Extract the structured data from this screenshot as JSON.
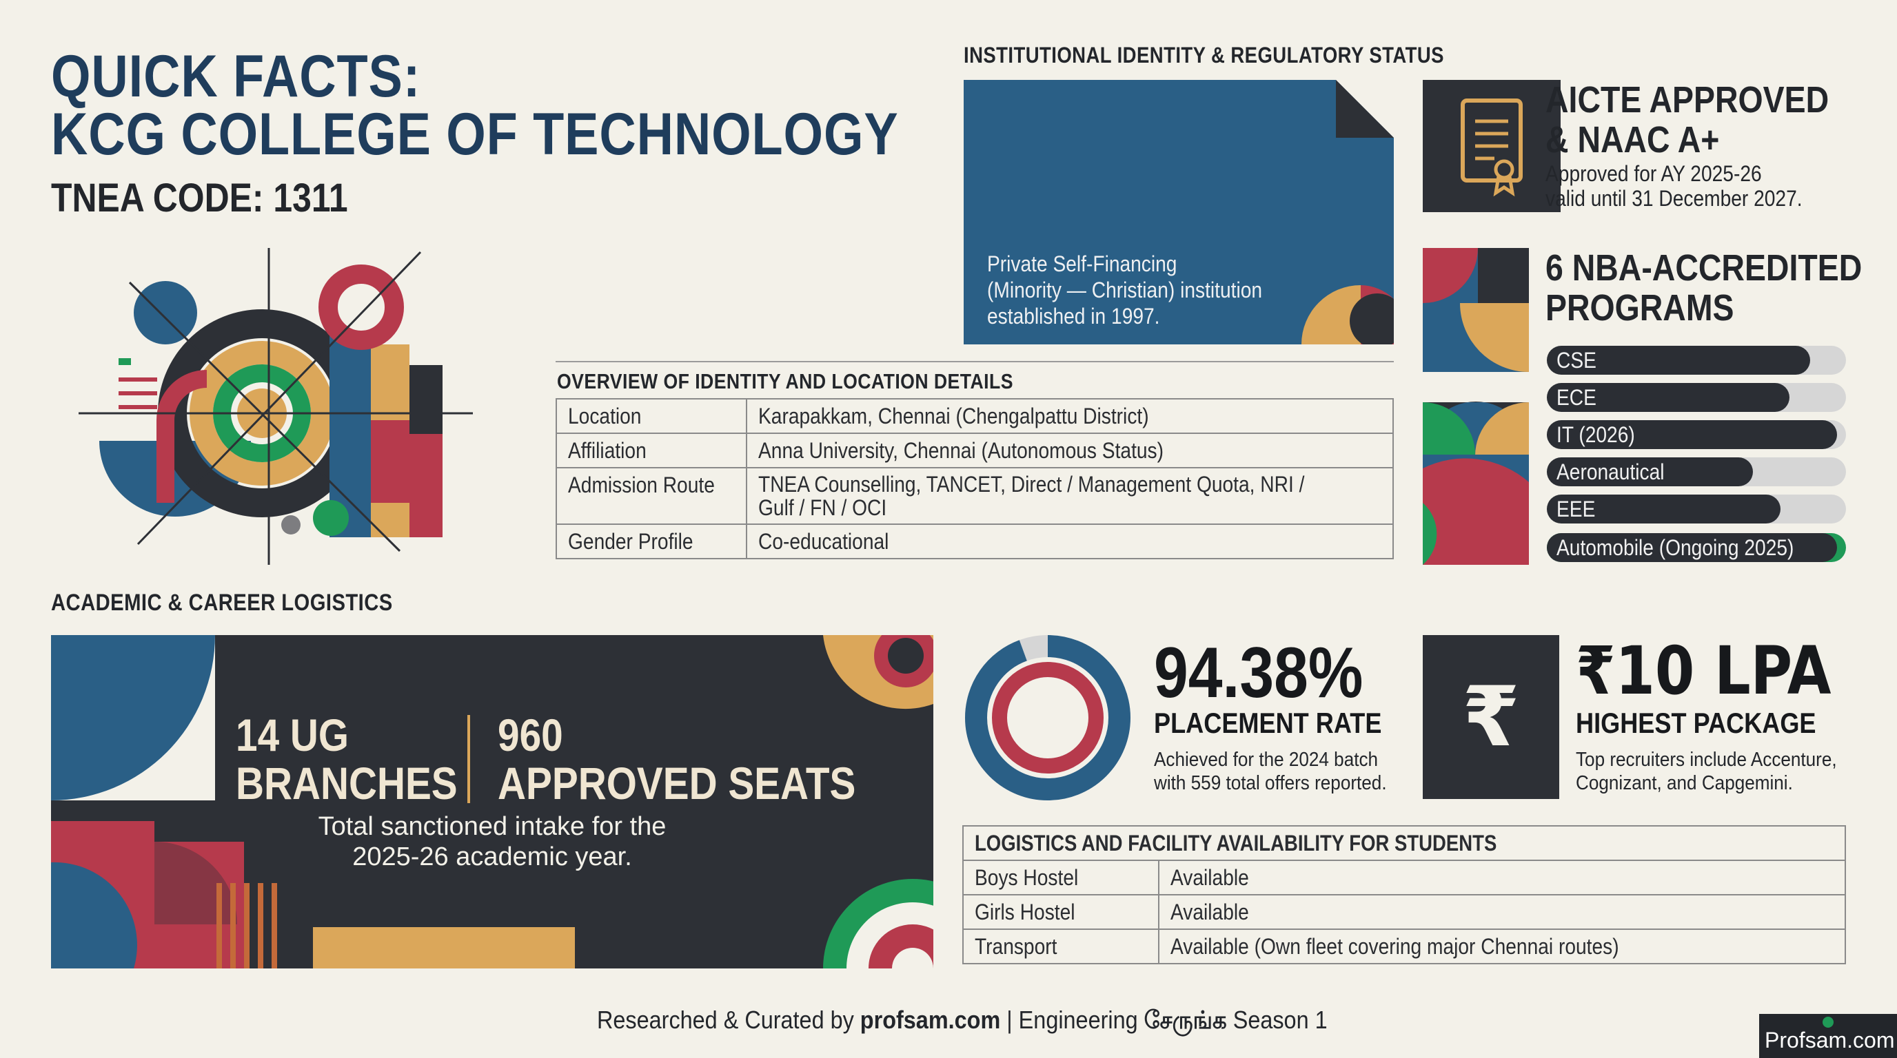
{
  "header": {
    "title_line1": "QUICK FACTS:",
    "title_line2": "KCG COLLEGE OF TECHNOLOGY",
    "tnea_code": "TNEA CODE: 1311"
  },
  "institutional": {
    "heading": "INSTITUTIONAL IDENTITY & REGULATORY STATUS",
    "card_text": [
      "Private Self-Financing",
      "(Minority — Christian) institution",
      "established in 1997."
    ]
  },
  "overview": {
    "heading": "OVERVIEW OF IDENTITY AND LOCATION DETAILS",
    "rows": [
      {
        "label": "Location",
        "value": [
          "Karapakkam, Chennai (Chengalpattu District)"
        ]
      },
      {
        "label": "Affiliation",
        "value": [
          "Anna University, Chennai (Autonomous Status)"
        ]
      },
      {
        "label": "Admission Route",
        "value": [
          "TNEA Counselling, TANCET, Direct / Management Quota, NRI /",
          "Gulf / FN / OCI"
        ]
      },
      {
        "label": "Gender Profile",
        "value": [
          "Co-educational"
        ]
      }
    ]
  },
  "aicte": {
    "headline": [
      "AICTE APPROVED",
      "& NAAC A+"
    ],
    "detail": [
      "Approved for AY 2025-26",
      "valid until 31 December 2027."
    ],
    "icon": "certificate-icon"
  },
  "nba": {
    "headline": [
      "6 NBA-ACCREDITED",
      "PROGRAMS"
    ],
    "programs": [
      {
        "label": "CSE",
        "level": 0.88,
        "color": "#2b2e34"
      },
      {
        "label": "ECE",
        "level": 0.81,
        "color": "#2b2e34"
      },
      {
        "label": "IT (2026)",
        "level": 0.97,
        "color": "#2b2e34"
      },
      {
        "label": "Aeronautical",
        "level": 0.69,
        "color": "#2b2e34"
      },
      {
        "label": "EEE",
        "level": 0.78,
        "color": "#2b2e34"
      },
      {
        "label": "Automobile (Ongoing 2025)",
        "level": 0.97,
        "color": "#2b2e34",
        "tip": "#1f9a57"
      }
    ]
  },
  "academic": {
    "heading": "ACADEMIC & CAREER LOGISTICS",
    "ug_line1": "14 UG",
    "ug_line2": "BRANCHES",
    "seats_line1": "960",
    "seats_line2": "APPROVED SEATS",
    "caption": [
      "Total sanctioned intake for the",
      "2025-26 academic year."
    ]
  },
  "placement": {
    "value": "94.38%",
    "label": "PLACEMENT RATE",
    "detail": [
      "Achieved for the 2024 batch",
      "with 559 total offers reported."
    ],
    "rate": 94.38
  },
  "package": {
    "value": "₹10 LPA",
    "label": "HIGHEST PACKAGE",
    "detail": [
      "Top recruiters include Accenture,",
      "Cognizant, and Capgemini."
    ],
    "icon": "rupee-icon",
    "symbol": "₹"
  },
  "logistics": {
    "heading": "LOGISTICS AND FACILITY AVAILABILITY FOR STUDENTS",
    "rows": [
      {
        "label": "Boys Hostel",
        "value": "Available"
      },
      {
        "label": "Girls Hostel",
        "value": "Available"
      },
      {
        "label": "Transport",
        "value": "Available (Own fleet covering major Chennai routes)"
      }
    ]
  },
  "footer": {
    "prefix": "Researched & Curated by ",
    "site": "profsam.com",
    "middle": " | Engineering ",
    "tamil": "சேருங்க",
    "suffix": " Season 1",
    "badge": "Profsam.com"
  },
  "colors": {
    "navy": "#1f3d5c",
    "blue": "#2a5f86",
    "red": "#b63a4c",
    "mustard": "#dba75a",
    "green": "#1f9a57",
    "charcoal": "#2d3036",
    "background": "#f3f1e9"
  }
}
